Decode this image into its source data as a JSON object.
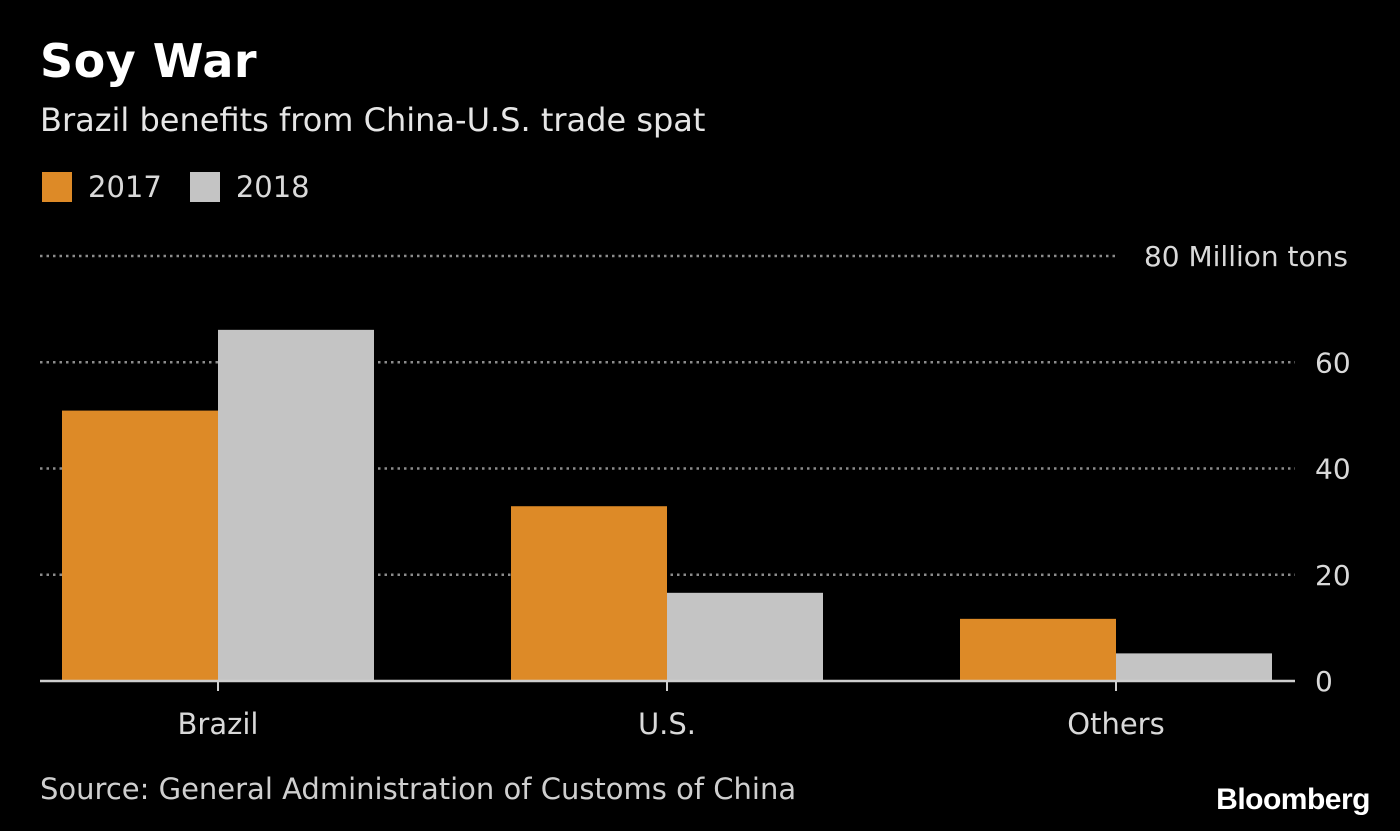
{
  "header": {
    "title": "Soy War",
    "subtitle": "Brazil benefits from China-U.S. trade spat"
  },
  "footer": {
    "source": "Source: General Administration of Customs of China",
    "brand": "Bloomberg"
  },
  "colors": {
    "background": "#000000",
    "series_2017": "#dd8a27",
    "series_2018": "#c4c4c4",
    "grid": "#8c8c8c",
    "axis": "#cfcfcf",
    "text": "#d9d9d9"
  },
  "chart_data": {
    "type": "bar",
    "title": "Soy War",
    "subtitle": "Brazil benefits from China-U.S. trade spat",
    "categories": [
      "Brazil",
      "U.S.",
      "Others"
    ],
    "series": [
      {
        "name": "2017",
        "values": [
          50.9,
          32.9,
          11.7
        ],
        "color": "#dd8a27"
      },
      {
        "name": "2018",
        "values": [
          66.1,
          16.6,
          5.2
        ],
        "color": "#c4c4c4"
      }
    ],
    "ylim": [
      0,
      80
    ],
    "yticks": [
      0,
      20,
      40,
      60,
      80
    ],
    "ytick_labels": [
      "0",
      "20",
      "40",
      "60",
      "80 Million tons"
    ],
    "xlabel": "",
    "ylabel": "",
    "grid": true,
    "grid_style": "dotted",
    "y_axis_side": "right",
    "legend_position": "top-left"
  }
}
